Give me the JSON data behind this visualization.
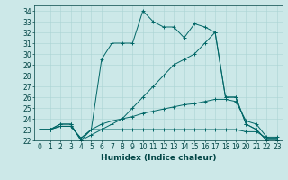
{
  "xlabel": "Humidex (Indice chaleur)",
  "background_color": "#cce8e8",
  "line_color": "#006666",
  "xlim": [
    -0.5,
    23.5
  ],
  "ylim": [
    22,
    34.5
  ],
  "xticks": [
    0,
    1,
    2,
    3,
    4,
    5,
    6,
    7,
    8,
    9,
    10,
    11,
    12,
    13,
    14,
    15,
    16,
    17,
    18,
    19,
    20,
    21,
    22,
    23
  ],
  "yticks": [
    22,
    23,
    24,
    25,
    26,
    27,
    28,
    29,
    30,
    31,
    32,
    33,
    34
  ],
  "grid_color": "#aad4d4",
  "font_color": "#004444",
  "tick_fontsize": 5.5,
  "label_fontsize": 6.5,
  "line1_x": [
    0,
    1,
    2,
    3,
    4,
    5,
    6,
    7,
    8,
    9,
    10,
    11,
    12,
    13,
    14,
    15,
    16,
    17,
    18,
    19,
    20,
    21,
    22,
    23
  ],
  "line1_y": [
    23,
    23,
    23.5,
    23.5,
    22,
    23,
    29.5,
    31,
    31,
    31,
    34,
    33,
    32.5,
    32.5,
    31.5,
    32.8,
    32.5,
    32,
    26,
    26,
    23.5,
    23,
    22,
    22
  ],
  "line2_x": [
    0,
    1,
    2,
    3,
    4,
    5,
    6,
    7,
    8,
    9,
    10,
    11,
    12,
    13,
    14,
    15,
    16,
    17,
    18,
    19,
    20,
    21,
    22,
    23
  ],
  "line2_y": [
    23,
    23,
    23.5,
    23.5,
    22,
    22.5,
    23,
    23.5,
    24,
    25,
    26,
    27,
    28,
    29,
    29.5,
    30,
    31,
    32,
    26,
    26,
    23.5,
    23,
    22,
    22
  ],
  "line3_x": [
    0,
    1,
    2,
    3,
    4,
    5,
    6,
    7,
    8,
    9,
    10,
    11,
    12,
    13,
    14,
    15,
    16,
    17,
    18,
    19,
    20,
    21,
    22,
    23
  ],
  "line3_y": [
    23,
    23,
    23.3,
    23.3,
    22.2,
    23,
    23.5,
    23.8,
    24,
    24.2,
    24.5,
    24.7,
    24.9,
    25.1,
    25.3,
    25.4,
    25.6,
    25.8,
    25.8,
    25.6,
    23.8,
    23.5,
    22.3,
    22.3
  ],
  "line4_x": [
    0,
    1,
    2,
    3,
    4,
    5,
    6,
    7,
    8,
    9,
    10,
    11,
    12,
    13,
    14,
    15,
    16,
    17,
    18,
    19,
    20,
    21,
    22,
    23
  ],
  "line4_y": [
    23,
    23,
    23.3,
    23.3,
    22.2,
    23,
    23,
    23,
    23,
    23,
    23,
    23,
    23,
    23,
    23,
    23,
    23,
    23,
    23,
    23,
    22.8,
    22.8,
    22.2,
    22.2
  ]
}
